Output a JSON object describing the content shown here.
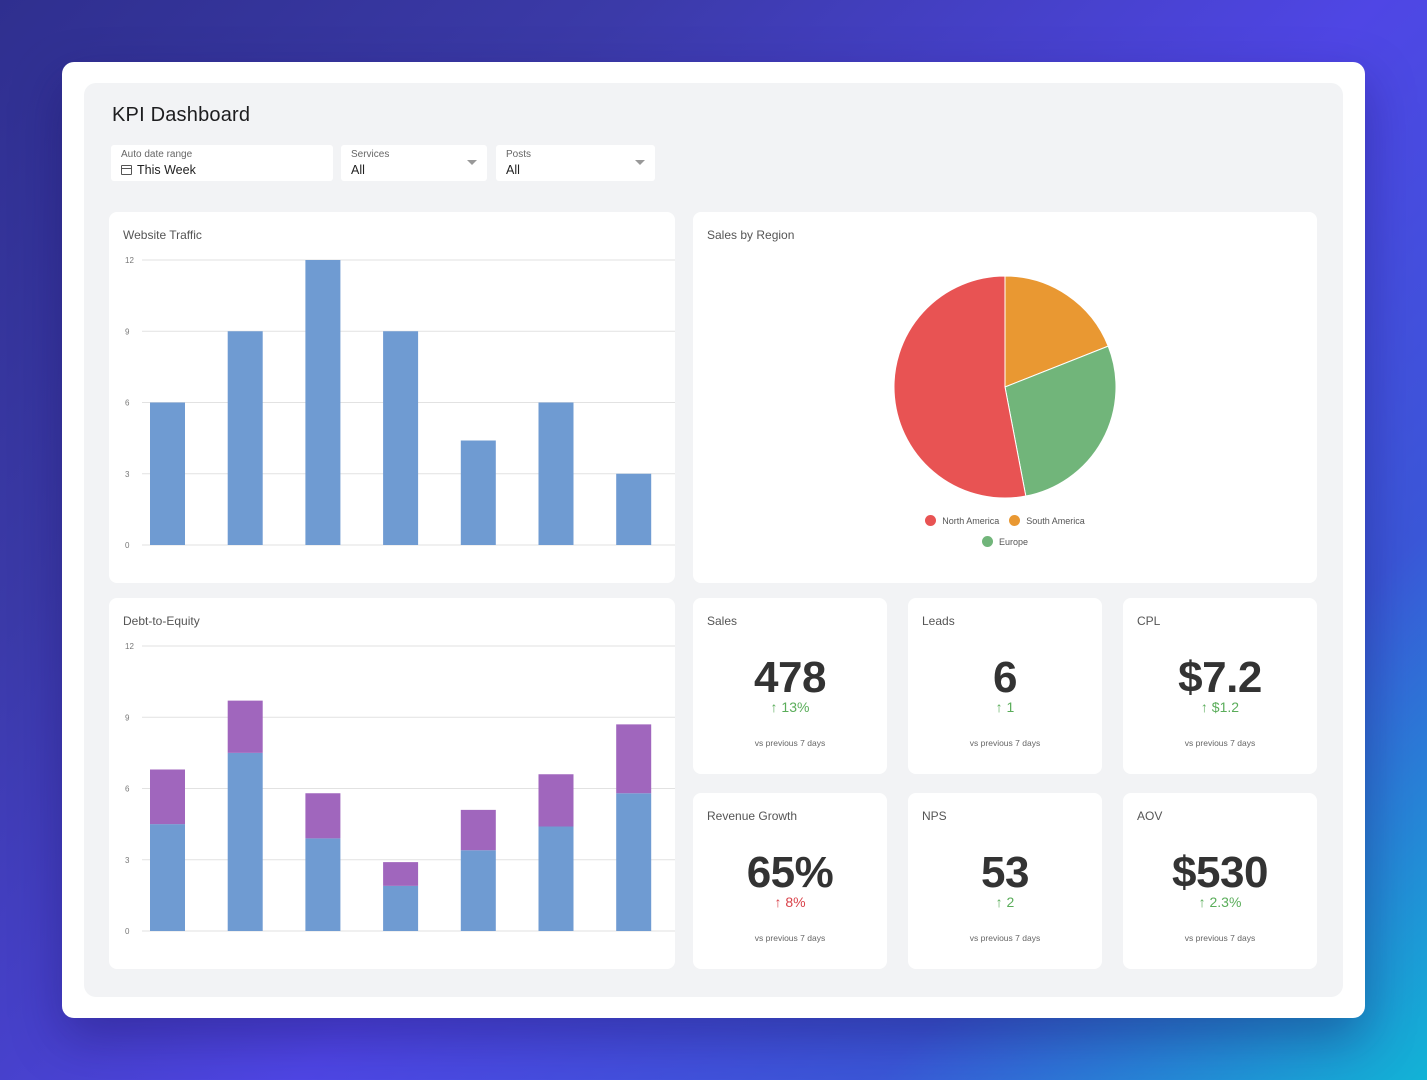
{
  "dashboard": {
    "title": "KPI Dashboard",
    "filters": [
      {
        "label": "Auto date range",
        "value": "This Week",
        "icon": "calendar-icon"
      },
      {
        "label": "Services",
        "value": "All",
        "icon": "chevron-down-icon"
      },
      {
        "label": "Posts",
        "value": "All",
        "icon": "chevron-down-icon"
      }
    ]
  },
  "colors": {
    "bar_blue": "#6f9bd2",
    "bar_purple": "#a066bd",
    "up_green": "#5aad5a",
    "up_red": "#d9424a",
    "north_america": "#e85353",
    "south_america": "#e99832",
    "europe": "#71b57a"
  },
  "website_traffic": {
    "title": "Website Traffic"
  },
  "debt_to_equity": {
    "title": "Debt-to-Equity"
  },
  "sales_by_region": {
    "title": "Sales by Region"
  },
  "kpis": [
    {
      "label": "Sales",
      "value": "478",
      "delta": "↑ 13%",
      "trend": "green",
      "note": "vs previous 7 days"
    },
    {
      "label": "Leads",
      "value": "6",
      "delta": "↑ 1",
      "trend": "green",
      "note": "vs previous 7 days"
    },
    {
      "label": "CPL",
      "value": "$7.2",
      "delta": "↑ $1.2",
      "trend": "green",
      "note": "vs previous 7 days"
    },
    {
      "label": "Revenue Growth",
      "value": "65%",
      "delta": "↑ 8%",
      "trend": "red",
      "note": "vs previous 7 days"
    },
    {
      "label": "NPS",
      "value": "53",
      "delta": "↑ 2",
      "trend": "green",
      "note": "vs previous 7 days"
    },
    {
      "label": "AOV",
      "value": "$530",
      "delta": "↑ 2.3%",
      "trend": "green",
      "note": "vs previous 7 days"
    }
  ],
  "chart_data": [
    {
      "type": "bar",
      "title": "Website Traffic",
      "xlabel": "",
      "ylabel": "",
      "ylim": [
        0,
        12
      ],
      "yticks": [
        "0",
        "3",
        "6",
        "9",
        "12"
      ],
      "grid": true,
      "values": [
        6,
        9,
        12,
        9,
        4.4,
        6,
        3
      ]
    },
    {
      "type": "bar",
      "stacked": true,
      "title": "Debt-to-Equity",
      "xlabel": "",
      "ylabel": "",
      "ylim": [
        0,
        12
      ],
      "yticks": [
        "0",
        "3",
        "6",
        "9",
        "12"
      ],
      "grid": true,
      "series": [
        {
          "values": [
            4.5,
            7.5,
            3.9,
            1.9,
            3.4,
            4.4,
            5.8
          ]
        },
        {
          "values": [
            2.3,
            2.2,
            1.9,
            1.0,
            1.7,
            2.2,
            2.9
          ]
        }
      ]
    },
    {
      "type": "pie",
      "title": "Sales by Region",
      "legend_position": "bottom",
      "slices": [
        {
          "label": "South America",
          "value": 19
        },
        {
          "label": "Europe",
          "value": 28
        },
        {
          "label": "North America",
          "value": 53
        }
      ]
    }
  ]
}
